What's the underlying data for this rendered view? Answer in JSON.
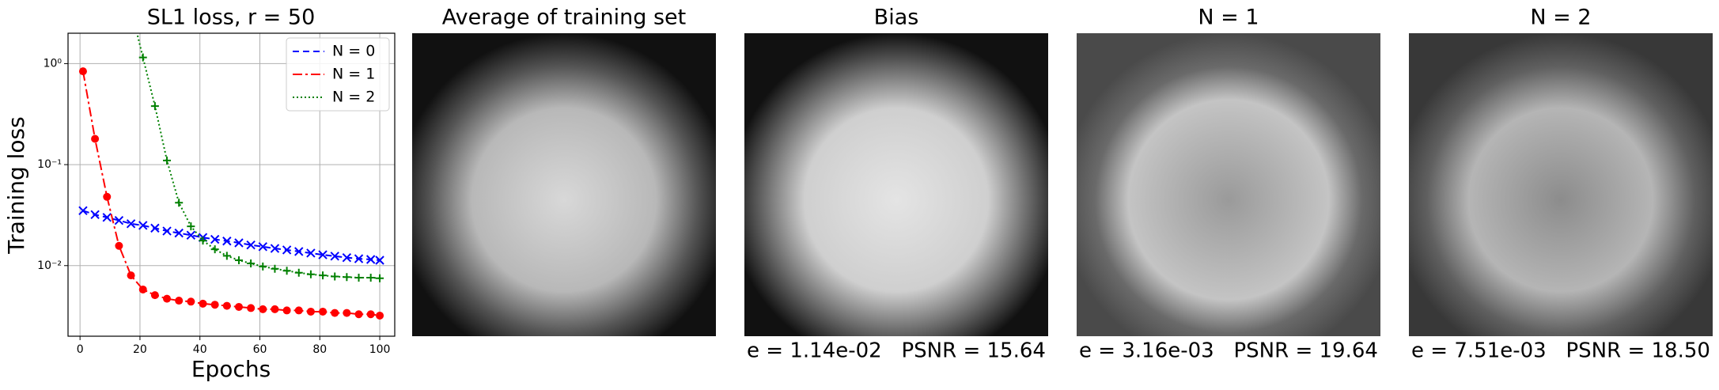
{
  "chart_data": {
    "type": "line",
    "title": "SL1 loss, r = 50",
    "x_label": "Epochs",
    "y_label": "Training loss",
    "log_y": true,
    "grid": true,
    "legend": "upper right",
    "x": [
      1,
      5,
      9,
      13,
      17,
      21,
      25,
      29,
      33,
      37,
      41,
      45,
      49,
      53,
      57,
      61,
      65,
      69,
      73,
      77,
      81,
      85,
      89,
      93,
      97,
      100
    ],
    "series": [
      {
        "name": "N = 0",
        "color": "#0000ff",
        "dash": "8,5",
        "marker": "x",
        "values": [
          0.035,
          0.032,
          0.03,
          0.028,
          0.026,
          0.025,
          0.0235,
          0.022,
          0.021,
          0.02,
          0.019,
          0.0182,
          0.0175,
          0.0168,
          0.016,
          0.0154,
          0.0148,
          0.0143,
          0.0138,
          0.0133,
          0.0128,
          0.0124,
          0.012,
          0.0117,
          0.0115,
          0.0113
        ]
      },
      {
        "name": "N = 1",
        "color": "#ff0000",
        "dash": "12,4,3,4",
        "marker": "o",
        "values": [
          0.84,
          0.18,
          0.048,
          0.0157,
          0.008,
          0.0058,
          0.0051,
          0.0047,
          0.0045,
          0.0044,
          0.0042,
          0.0041,
          0.004,
          0.0039,
          0.0038,
          0.0037,
          0.0037,
          0.0036,
          0.0036,
          0.0035,
          0.0035,
          0.0034,
          0.0034,
          0.0033,
          0.0033,
          0.0032
        ]
      },
      {
        "name": "N = 2",
        "color": "#008000",
        "dash": "2,3",
        "marker": "+",
        "values": [
          null,
          null,
          null,
          null,
          3.5,
          1.15,
          0.38,
          0.11,
          0.042,
          0.0245,
          0.0177,
          0.0145,
          0.0125,
          0.0113,
          0.0105,
          0.0098,
          0.0093,
          0.0089,
          0.0085,
          0.0082,
          0.008,
          0.0078,
          0.0077,
          0.0076,
          0.0076,
          0.0075
        ]
      }
    ],
    "xlim": [
      -4,
      105
    ],
    "xticks": [
      0,
      20,
      40,
      60,
      80,
      100
    ],
    "ylim": [
      0.002,
      2
    ],
    "yticks": [
      {
        "value": 0.01,
        "label": "10⁻²"
      },
      {
        "value": 0.1,
        "label": "10⁻¹"
      },
      {
        "value": 1,
        "label": "10⁰"
      }
    ]
  },
  "panels": [
    {
      "title": "Average of training set"
    },
    {
      "title": "Bias",
      "caption": "e = 1.14e-02   PSNR = 15.64"
    },
    {
      "title": "N = 1",
      "caption": "e = 3.16e-03   PSNR = 19.64"
    },
    {
      "title": "N = 2",
      "caption": "e = 7.51e-03   PSNR = 18.50"
    }
  ]
}
